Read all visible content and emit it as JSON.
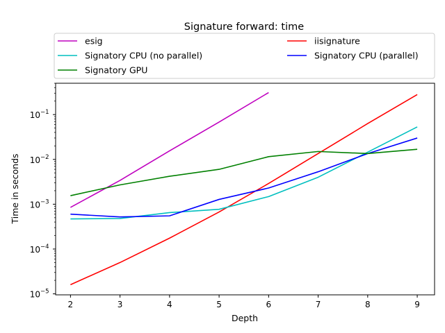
{
  "chart_data": {
    "type": "line",
    "title": "Signature forward: time",
    "xlabel": "Depth",
    "ylabel": "Time in seconds",
    "yscale": "log",
    "xlim": [
      1.7,
      9.35
    ],
    "ylim": [
      9.5e-06,
      0.5
    ],
    "x": [
      2,
      3,
      4,
      5,
      6,
      7,
      8,
      9
    ],
    "x_ticks": [
      "2",
      "3",
      "4",
      "5",
      "6",
      "7",
      "8",
      "9"
    ],
    "y_ticks": [
      {
        "value": 1e-05,
        "base": "10",
        "exp": "−5"
      },
      {
        "value": 0.0001,
        "base": "10",
        "exp": "−4"
      },
      {
        "value": 0.001,
        "base": "10",
        "exp": "−3"
      },
      {
        "value": 0.01,
        "base": "10",
        "exp": "−2"
      },
      {
        "value": 0.1,
        "base": "10",
        "exp": "−1"
      }
    ],
    "legend_position": "top, above plot",
    "series": [
      {
        "name": "esig",
        "color": "#bf00bf",
        "values": [
          0.00085,
          0.0034,
          0.0155,
          0.068,
          0.31,
          null,
          null,
          null
        ]
      },
      {
        "name": "iisignature",
        "color": "#ff0000",
        "values": [
          1.6e-05,
          5e-05,
          0.000175,
          0.00067,
          0.0029,
          0.0135,
          0.063,
          0.28
        ]
      },
      {
        "name": "Signatory CPU (no parallel)",
        "color": "#00bfbf",
        "values": [
          0.00047,
          0.00048,
          0.00065,
          0.00077,
          0.00148,
          0.004,
          0.0145,
          0.053
        ]
      },
      {
        "name": "Signatory CPU (parallel)",
        "color": "#0000ff",
        "values": [
          0.0006,
          0.00052,
          0.00055,
          0.00128,
          0.0023,
          0.0053,
          0.0135,
          0.03
        ]
      },
      {
        "name": "Signatory GPU",
        "color": "#008000",
        "values": [
          0.00155,
          0.0027,
          0.0042,
          0.006,
          0.0115,
          0.015,
          0.0135,
          0.0168
        ]
      }
    ],
    "legend_order": [
      0,
      1,
      2,
      3,
      4
    ]
  }
}
